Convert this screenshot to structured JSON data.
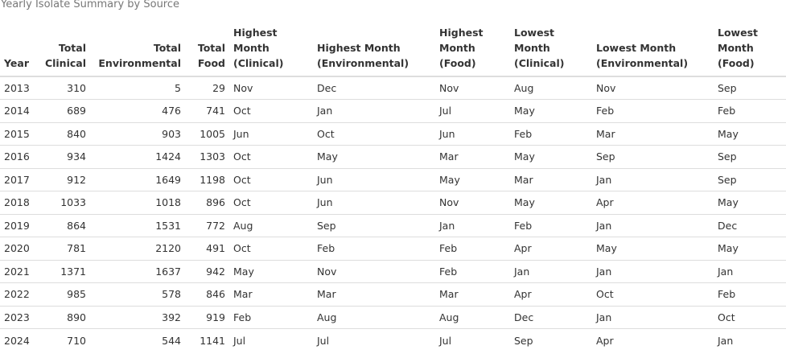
{
  "caption": "Yearly Isolate Summary by Source",
  "columns": [
    {
      "key": "year",
      "label": "Year",
      "align": "l"
    },
    {
      "key": "total_clinical",
      "label": "Total Clinical",
      "align": "r"
    },
    {
      "key": "total_environmental",
      "label": "Total Environmental",
      "align": "r"
    },
    {
      "key": "total_food",
      "label": "Total Food",
      "align": "r"
    },
    {
      "key": "highest_clinical",
      "label": "Highest Month (Clinical)",
      "align": "l"
    },
    {
      "key": "highest_environmental",
      "label": "Highest Month (Environmental)",
      "align": "l"
    },
    {
      "key": "highest_food",
      "label": "Highest Month (Food)",
      "align": "l"
    },
    {
      "key": "lowest_clinical",
      "label": "Lowest Month (Clinical)",
      "align": "l"
    },
    {
      "key": "lowest_environmental",
      "label": "Lowest Month (Environmental)",
      "align": "l"
    },
    {
      "key": "lowest_food",
      "label": "Lowest Month (Food)",
      "align": "l"
    }
  ],
  "rows": [
    [
      "2013",
      "310",
      "5",
      "29",
      "Nov",
      "Dec",
      "Nov",
      "Aug",
      "Nov",
      "Sep"
    ],
    [
      "2014",
      "689",
      "476",
      "741",
      "Oct",
      "Jan",
      "Jul",
      "May",
      "Feb",
      "Feb"
    ],
    [
      "2015",
      "840",
      "903",
      "1005",
      "Jun",
      "Oct",
      "Jun",
      "Feb",
      "Mar",
      "May"
    ],
    [
      "2016",
      "934",
      "1424",
      "1303",
      "Oct",
      "May",
      "Mar",
      "May",
      "Sep",
      "Sep"
    ],
    [
      "2017",
      "912",
      "1649",
      "1198",
      "Oct",
      "Jun",
      "May",
      "Mar",
      "Jan",
      "Sep"
    ],
    [
      "2018",
      "1033",
      "1018",
      "896",
      "Oct",
      "Jun",
      "Nov",
      "May",
      "Apr",
      "May"
    ],
    [
      "2019",
      "864",
      "1531",
      "772",
      "Aug",
      "Sep",
      "Jan",
      "Feb",
      "Jan",
      "Dec"
    ],
    [
      "2020",
      "781",
      "2120",
      "491",
      "Oct",
      "Feb",
      "Feb",
      "Apr",
      "May",
      "May"
    ],
    [
      "2021",
      "1371",
      "1637",
      "942",
      "May",
      "Nov",
      "Feb",
      "Jan",
      "Jan",
      "Jan"
    ],
    [
      "2022",
      "985",
      "578",
      "846",
      "Mar",
      "Mar",
      "Mar",
      "Apr",
      "Oct",
      "Feb"
    ],
    [
      "2023",
      "890",
      "392",
      "919",
      "Feb",
      "Aug",
      "Aug",
      "Dec",
      "Jan",
      "Oct"
    ],
    [
      "2024",
      "710",
      "544",
      "1141",
      "Jul",
      "Jul",
      "Jul",
      "Sep",
      "Apr",
      "Jan"
    ]
  ]
}
